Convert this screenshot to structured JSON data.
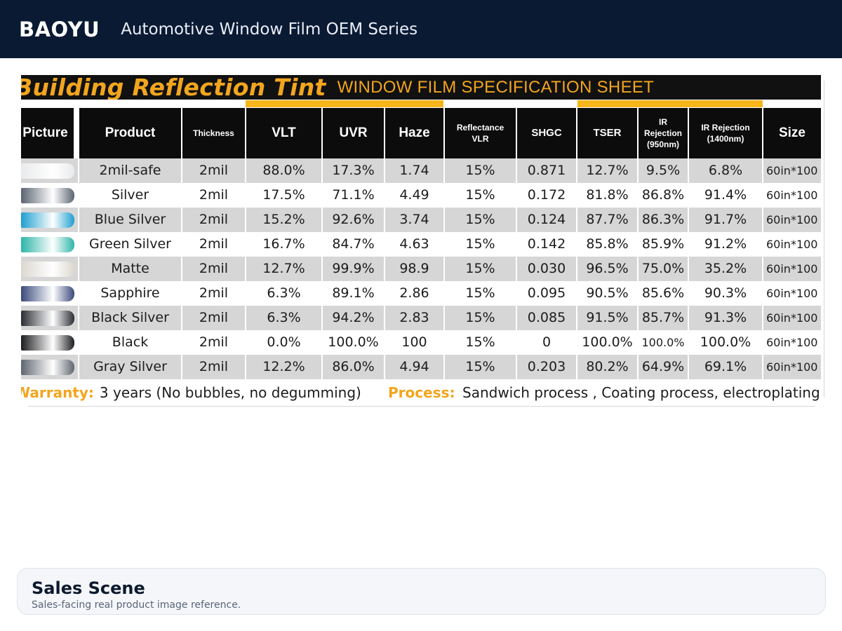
{
  "header": {
    "brand": "BAOYU",
    "subtitle": "Automotive Window Film OEM Series"
  },
  "sheet": {
    "script_title": "Building Reflection Tint",
    "heading": "WINDOW FILM SPECIFICATION SHEET",
    "columns": [
      "Picture",
      "Product",
      "Thickness",
      "VLT",
      "UVR",
      "Haze",
      "Reflectance VLR",
      "SHGC",
      "TSER",
      "IR Rejection (950nm)",
      "IR Rejection (1400nm)",
      "Size"
    ],
    "rows": [
      {
        "product": "2mil-safe",
        "thickness": "2mil",
        "vlt": "88.0%",
        "uvr": "17.3%",
        "haze": "1.74",
        "vlr": "15%",
        "shgc": "0.871",
        "tser": "12.7%",
        "ir950": "9.5%",
        "ir1400": "6.8%",
        "size": "60in*100"
      },
      {
        "product": "Silver",
        "thickness": "2mil",
        "vlt": "17.5%",
        "uvr": "71.1%",
        "haze": "4.49",
        "vlr": "15%",
        "shgc": "0.172",
        "tser": "81.8%",
        "ir950": "86.8%",
        "ir1400": "91.4%",
        "size": "60in*100"
      },
      {
        "product": "Blue Silver",
        "thickness": "2mil",
        "vlt": "15.2%",
        "uvr": "92.6%",
        "haze": "3.74",
        "vlr": "15%",
        "shgc": "0.124",
        "tser": "87.7%",
        "ir950": "86.3%",
        "ir1400": "91.7%",
        "size": "60in*100"
      },
      {
        "product": "Green Silver",
        "thickness": "2mil",
        "vlt": "16.7%",
        "uvr": "84.7%",
        "haze": "4.63",
        "vlr": "15%",
        "shgc": "0.142",
        "tser": "85.8%",
        "ir950": "85.9%",
        "ir1400": "91.2%",
        "size": "60in*100"
      },
      {
        "product": "Matte",
        "thickness": "2mil",
        "vlt": "12.7%",
        "uvr": "99.9%",
        "haze": "98.9",
        "vlr": "15%",
        "shgc": "0.030",
        "tser": "96.5%",
        "ir950": "75.0%",
        "ir1400": "35.2%",
        "size": "60in*100"
      },
      {
        "product": "Sapphire",
        "thickness": "2mil",
        "vlt": "6.3%",
        "uvr": "89.1%",
        "haze": "2.86",
        "vlr": "15%",
        "shgc": "0.095",
        "tser": "90.5%",
        "ir950": "85.6%",
        "ir1400": "90.3%",
        "size": "60in*100"
      },
      {
        "product": "Black Silver",
        "thickness": "2mil",
        "vlt": "6.3%",
        "uvr": "94.2%",
        "haze": "2.83",
        "vlr": "15%",
        "shgc": "0.085",
        "tser": "91.5%",
        "ir950": "85.7%",
        "ir1400": "91.3%",
        "size": "60in*100"
      },
      {
        "product": "Black",
        "thickness": "2mil",
        "vlt": "0.0%",
        "uvr": "100.0%",
        "haze": "100",
        "vlr": "15%",
        "shgc": "0",
        "tser": "100.0%",
        "ir950": "100.0%",
        "ir1400": "100.0%",
        "size": "60in*100"
      },
      {
        "product": "Gray Silver",
        "thickness": "2mil",
        "vlt": "12.2%",
        "uvr": "86.0%",
        "haze": "4.94",
        "vlr": "15%",
        "shgc": "0.203",
        "tser": "80.2%",
        "ir950": "64.9%",
        "ir1400": "69.1%",
        "size": "60in*100"
      }
    ],
    "swatch_colors": [
      "#e9eaec",
      "#5b6470",
      "#1f9fd0",
      "#2db5a8",
      "#dcd8d0",
      "#3b4a7d",
      "#2a2d33",
      "#1c1d20",
      "#5f6670"
    ],
    "warranty_label": "Warranty:",
    "warranty_text": "3 years (No bubbles, no degumming)",
    "process_label": "Process:",
    "process_text": "Sandwich process , Coating process, electroplating"
  },
  "card": {
    "title": "Sales Scene",
    "subtitle": "Sales-facing real product image reference."
  },
  "colors": {
    "header_bg": "#0b1a33",
    "accent_orange": "#f6b51b"
  }
}
